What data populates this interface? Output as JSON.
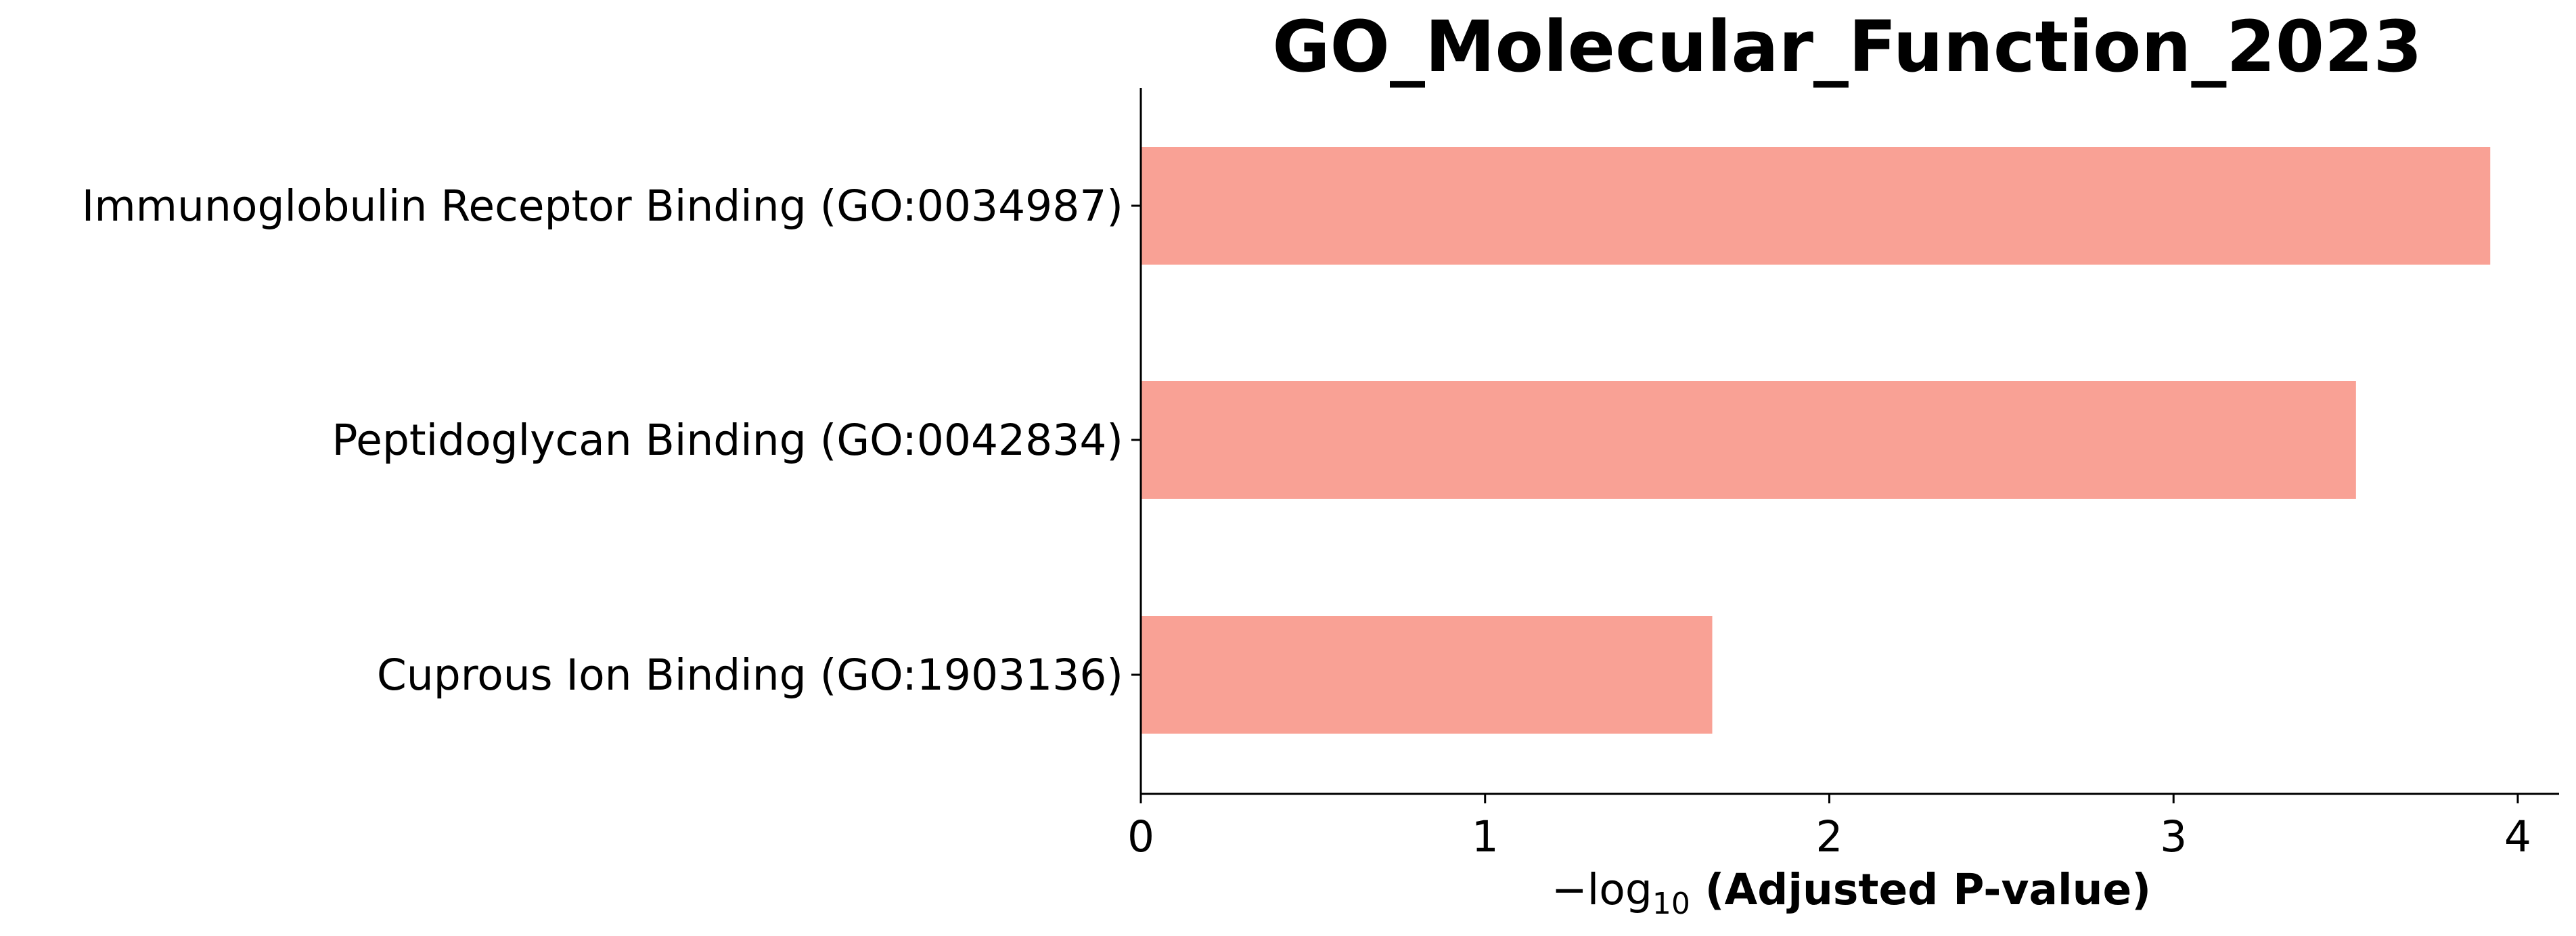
{
  "chart_data": {
    "type": "bar",
    "orientation": "horizontal",
    "title": "GO_Molecular_Function_2023",
    "xlabel_prefix": "−log",
    "xlabel_subscript": "10",
    "xlabel_main": " (Adjusted P-value)",
    "ylabel": "",
    "categories": [
      "Immunoglobulin Receptor Binding (GO:0034987)",
      "Peptidoglycan Binding (GO:0042834)",
      "Cuprous Ion Binding (GO:1903136)"
    ],
    "values": [
      3.92,
      3.53,
      1.66
    ],
    "xlim": [
      0,
      4.12
    ],
    "xticks": [
      "0",
      "1",
      "2",
      "3",
      "4"
    ],
    "bar_color": "#f9a195",
    "grid": false,
    "legend": "none"
  }
}
